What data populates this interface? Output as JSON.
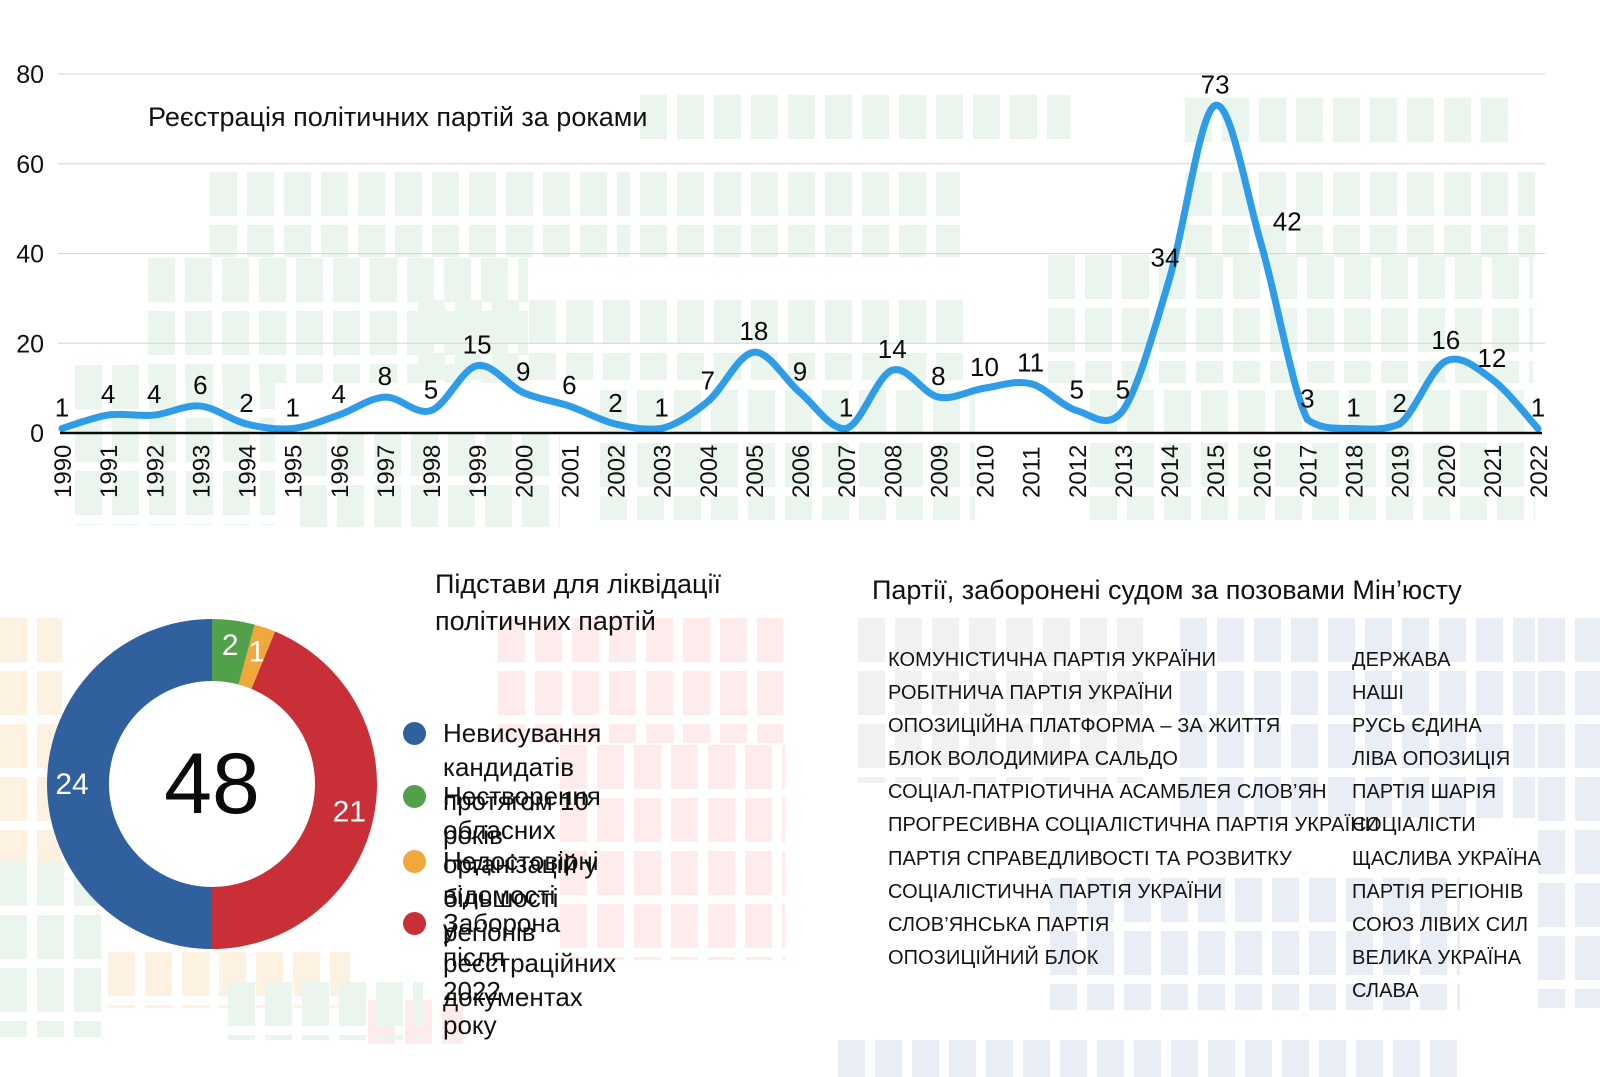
{
  "chart_data": [
    {
      "type": "line",
      "title": "Реєстрація політичних партій за роками",
      "x": [
        "1990",
        "1991",
        "1992",
        "1993",
        "1994",
        "1995",
        "1996",
        "1997",
        "1998",
        "1999",
        "2000",
        "2001",
        "2002",
        "2003",
        "2004",
        "2005",
        "2006",
        "2007",
        "2008",
        "2009",
        "2010",
        "2011",
        "2012",
        "2013",
        "2014",
        "2015",
        "2016",
        "2017",
        "2018",
        "2019",
        "2020",
        "2021",
        "2022"
      ],
      "values": [
        1,
        4,
        4,
        6,
        2,
        1,
        4,
        8,
        5,
        15,
        9,
        6,
        2,
        1,
        7,
        18,
        9,
        1,
        14,
        8,
        10,
        11,
        5,
        5,
        34,
        73,
        42,
        3,
        1,
        2,
        16,
        12,
        1
      ],
      "xlabel": "",
      "ylabel": "",
      "ylim": [
        0,
        80
      ],
      "yticks": [
        0,
        20,
        40,
        60,
        80
      ],
      "grid": true,
      "line_color": "#2f9ce8",
      "label_offsets": {
        "24": [
          -4,
          -2
        ],
        "26": [
          26,
          -2
        ]
      }
    },
    {
      "type": "donut",
      "title": "Підстави для ліквідації політичних партій",
      "total": 48,
      "center_label": "48",
      "draw_order": [
        1,
        2,
        3,
        0
      ],
      "legend_position": "right",
      "segments": [
        {
          "value": 24,
          "color": "#31609f",
          "lines": [
            "Невисування кандидатів",
            "протягом 10 років"
          ]
        },
        {
          "value": 2,
          "color": "#53a04a",
          "lines": [
            "Нестворення обласних",
            "організацій у більшості регіонів"
          ]
        },
        {
          "value": 1,
          "color": "#f0a73c",
          "lines": [
            "Недостовірні відомості",
            "у реєстраційних документах"
          ]
        },
        {
          "value": 21,
          "color": "#c92f37",
          "lines": [
            "Заборона після 2022 року"
          ]
        }
      ]
    }
  ],
  "banned": {
    "title": "Партії, заборонені судом за позовами Мін’юсту",
    "columns": [
      [
        "КОМУНІСТИЧНА ПАРТІЯ УКРАЇНИ",
        "РОБІТНИЧА ПАРТІЯ УКРАЇНИ",
        "ОПОЗИЦІЙНА ПЛАТФОРМА – ЗА ЖИТТЯ",
        "БЛОК ВОЛОДИМИРА САЛЬДО",
        "СОЦІАЛ-ПАТРІОТИЧНА АСАМБЛЕЯ СЛОВ’ЯН",
        "ПРОГРЕСИВНА СОЦІАЛІСТИЧНА ПАРТІЯ УКРАЇНИ",
        "ПАРТІЯ СПРАВЕДЛИВОСТІ ТА РОЗВИТКУ",
        "СОЦІАЛІСТИЧНА ПАРТІЯ УКРАЇНИ",
        "СЛОВ’ЯНСЬКА ПАРТІЯ",
        "ОПОЗИЦІЙНИЙ БЛОК"
      ],
      [
        "ДЕРЖАВА",
        "НАШІ",
        "РУСЬ ЄДИНА",
        "ЛІВА ОПОЗИЦІЯ",
        "ПАРТІЯ ШАРІЯ",
        "СОЦІАЛІСТИ",
        "ЩАСЛИВА УКРАЇНА",
        "ПАРТІЯ РЕГІОНІВ",
        "СОЮЗ ЛІВИХ СИЛ",
        "ВЕЛИКА УКРАЇНА",
        "СЛАВА"
      ]
    ]
  }
}
